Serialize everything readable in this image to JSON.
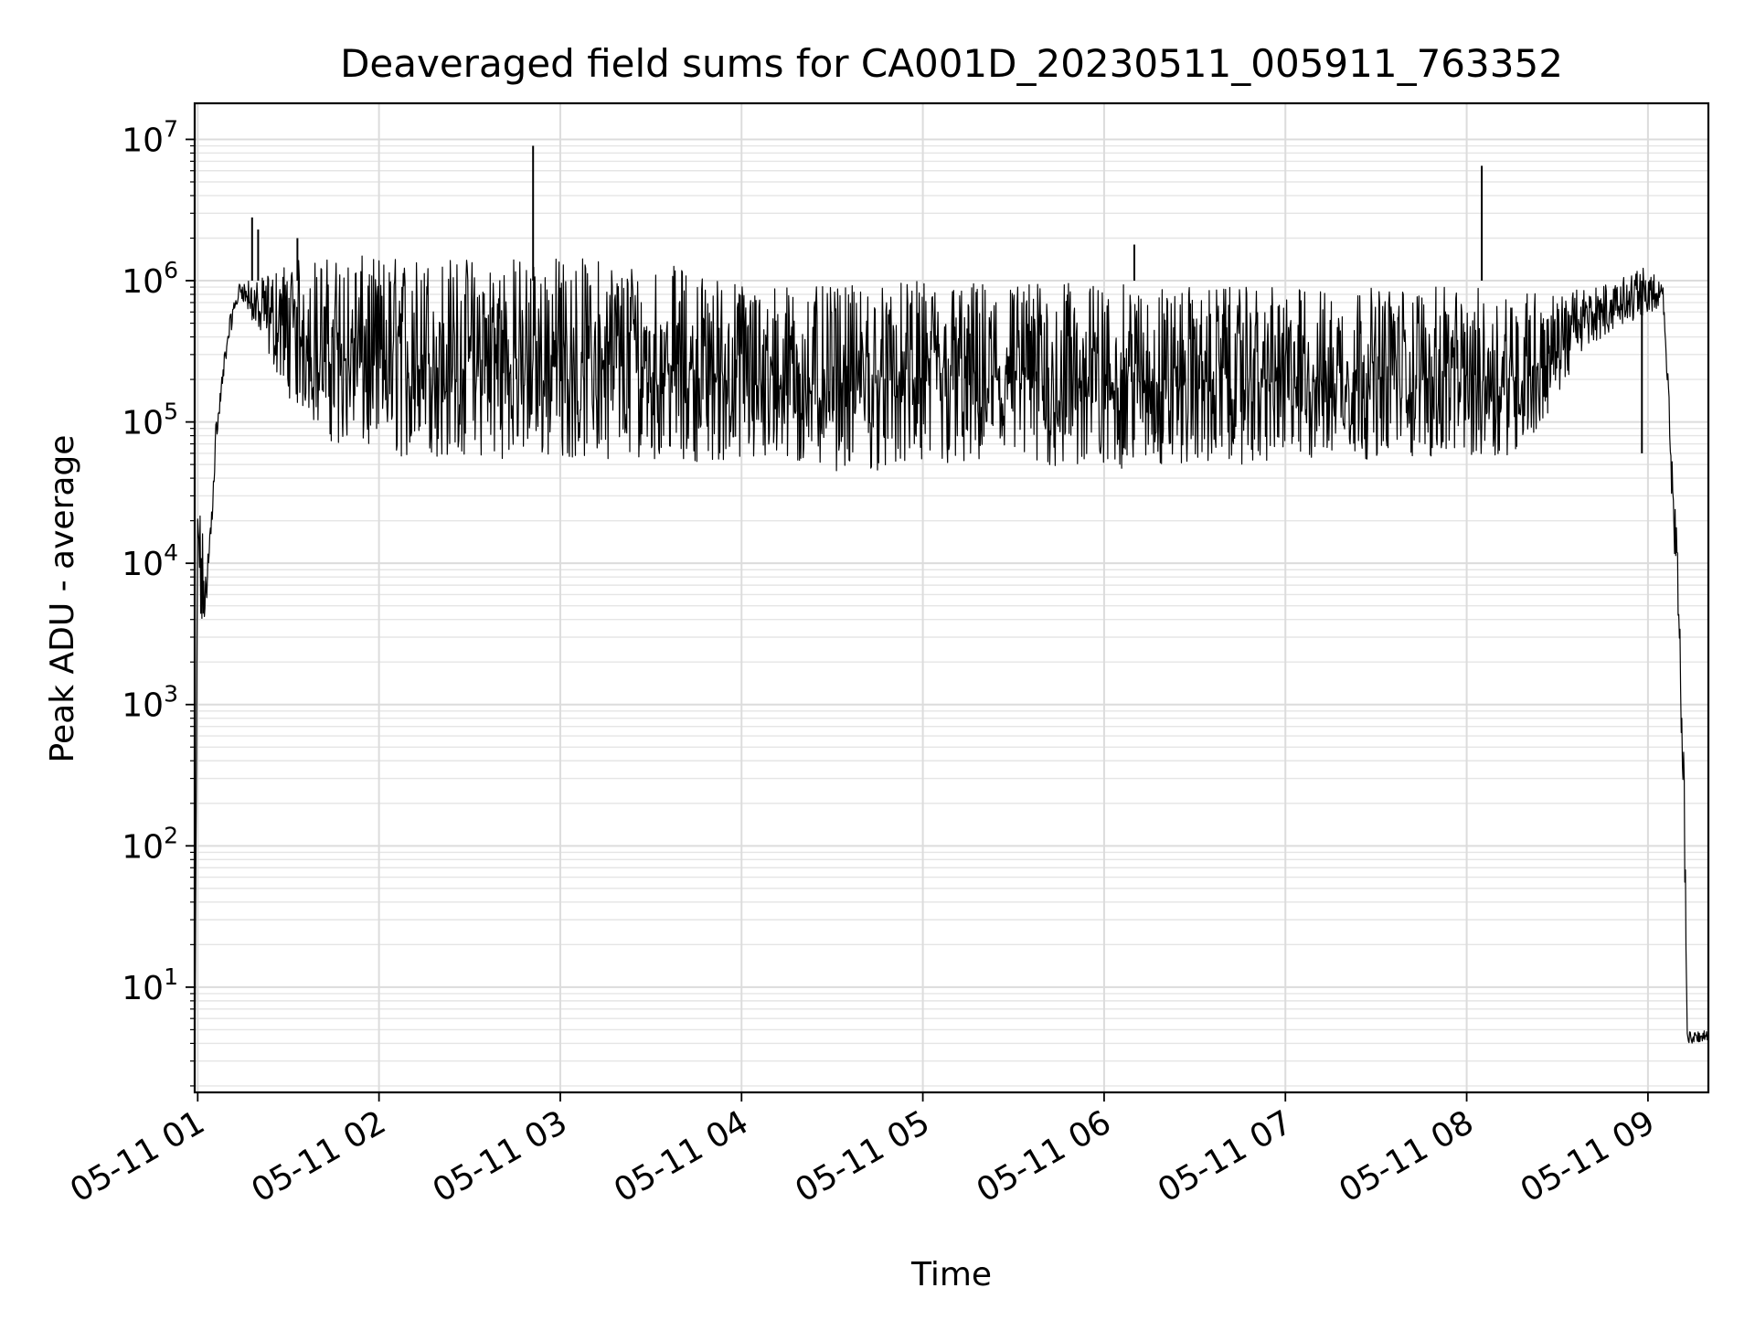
{
  "chart_data": {
    "type": "line",
    "title": "Deaveraged field sums for CA001D_20230511_005911_763352",
    "xlabel": "Time",
    "ylabel": "Peak ADU - average",
    "yscale": "log",
    "grid": true,
    "grid_minor": true,
    "xlim": [
      "2023-05-11 00:59",
      "2023-05-11 09:20"
    ],
    "ylim": [
      1.8,
      18000000
    ],
    "x_ticks": [
      {
        "value": "2023-05-11 01:00",
        "label": "05-11 01"
      },
      {
        "value": "2023-05-11 02:00",
        "label": "05-11 02"
      },
      {
        "value": "2023-05-11 03:00",
        "label": "05-11 03"
      },
      {
        "value": "2023-05-11 04:00",
        "label": "05-11 04"
      },
      {
        "value": "2023-05-11 05:00",
        "label": "05-11 05"
      },
      {
        "value": "2023-05-11 06:00",
        "label": "05-11 06"
      },
      {
        "value": "2023-05-11 07:00",
        "label": "05-11 07"
      },
      {
        "value": "2023-05-11 08:00",
        "label": "05-11 08"
      },
      {
        "value": "2023-05-11 09:00",
        "label": "05-11 09"
      }
    ],
    "y_ticks": [
      {
        "value": 10,
        "label_base": "10",
        "label_exp": "1"
      },
      {
        "value": 100,
        "label_base": "10",
        "label_exp": "2"
      },
      {
        "value": 1000,
        "label_base": "10",
        "label_exp": "3"
      },
      {
        "value": 10000,
        "label_base": "10",
        "label_exp": "4"
      },
      {
        "value": 100000,
        "label_base": "10",
        "label_exp": "5"
      },
      {
        "value": 1000000,
        "label_base": "10",
        "label_exp": "6"
      },
      {
        "value": 10000000,
        "label_base": "10",
        "label_exp": "7"
      }
    ],
    "series": [
      {
        "color": "#000000",
        "envelope": [
          {
            "x": "2023-05-11 00:59",
            "upper": 2,
            "lower": 2
          },
          {
            "x": "2023-05-11 01:00",
            "upper": 28000,
            "lower": 12000
          },
          {
            "x": "2023-05-11 01:01",
            "upper": 25000,
            "lower": 2600
          },
          {
            "x": "2023-05-11 01:03",
            "upper": 9000,
            "lower": 4000
          },
          {
            "x": "2023-05-11 01:06",
            "upper": 100000,
            "lower": 60000
          },
          {
            "x": "2023-05-11 01:10",
            "upper": 500000,
            "lower": 350000
          },
          {
            "x": "2023-05-11 01:14",
            "upper": 1000000,
            "lower": 800000
          },
          {
            "x": "2023-05-11 01:20",
            "upper": 1000000,
            "lower": 400000
          },
          {
            "x": "2023-05-11 01:30",
            "upper": 1400000,
            "lower": 150000
          },
          {
            "x": "2023-05-11 01:45",
            "upper": 1500000,
            "lower": 70000
          },
          {
            "x": "2023-05-11 02:00",
            "upper": 1500000,
            "lower": 55000
          },
          {
            "x": "2023-05-11 02:30",
            "upper": 1500000,
            "lower": 55000
          },
          {
            "x": "2023-05-11 03:00",
            "upper": 1500000,
            "lower": 55000
          },
          {
            "x": "2023-05-11 03:30",
            "upper": 1400000,
            "lower": 55000
          },
          {
            "x": "2023-05-11 04:00",
            "upper": 1000000,
            "lower": 50000
          },
          {
            "x": "2023-05-11 04:30",
            "upper": 900000,
            "lower": 45000
          },
          {
            "x": "2023-05-11 05:00",
            "upper": 1000000,
            "lower": 45000
          },
          {
            "x": "2023-05-11 05:30",
            "upper": 1000000,
            "lower": 45000
          },
          {
            "x": "2023-05-11 06:00",
            "upper": 950000,
            "lower": 45000
          },
          {
            "x": "2023-05-11 06:30",
            "upper": 900000,
            "lower": 50000
          },
          {
            "x": "2023-05-11 07:00",
            "upper": 900000,
            "lower": 50000
          },
          {
            "x": "2023-05-11 07:30",
            "upper": 900000,
            "lower": 55000
          },
          {
            "x": "2023-05-11 08:00",
            "upper": 900000,
            "lower": 55000
          },
          {
            "x": "2023-05-11 08:20",
            "upper": 900000,
            "lower": 60000
          },
          {
            "x": "2023-05-11 08:30",
            "upper": 800000,
            "lower": 150000
          },
          {
            "x": "2023-05-11 08:40",
            "upper": 900000,
            "lower": 350000
          },
          {
            "x": "2023-05-11 08:50",
            "upper": 1000000,
            "lower": 450000
          },
          {
            "x": "2023-05-11 09:00",
            "upper": 1300000,
            "lower": 600000
          },
          {
            "x": "2023-05-11 09:05",
            "upper": 900000,
            "lower": 600000
          },
          {
            "x": "2023-05-11 09:10",
            "upper": 12000,
            "lower": 3000
          },
          {
            "x": "2023-05-11 09:12",
            "upper": 400,
            "lower": 100
          },
          {
            "x": "2023-05-11 09:13",
            "upper": 5,
            "lower": 4
          },
          {
            "x": "2023-05-11 09:20",
            "upper": 5,
            "lower": 4
          }
        ],
        "spikes": [
          {
            "x": "2023-05-11 01:18",
            "y": 2800000
          },
          {
            "x": "2023-05-11 01:20",
            "y": 2300000
          },
          {
            "x": "2023-05-11 01:33",
            "y": 2000000
          },
          {
            "x": "2023-05-11 02:51",
            "y": 9000000
          },
          {
            "x": "2023-05-11 06:10",
            "y": 1800000
          },
          {
            "x": "2023-05-11 08:05",
            "y": 6500000
          },
          {
            "x": "2023-05-11 08:58",
            "y": 60000
          }
        ]
      }
    ]
  }
}
